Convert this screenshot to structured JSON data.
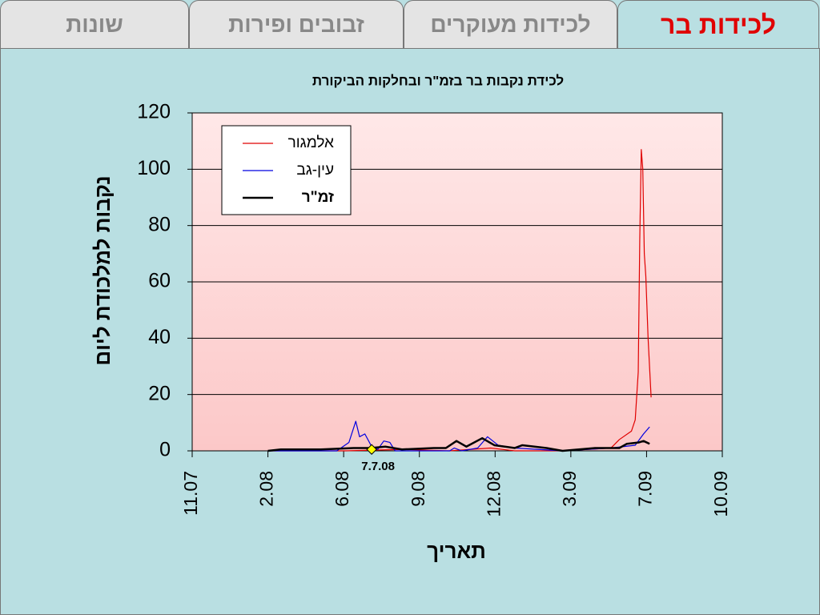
{
  "tabs": [
    "לכידות בר",
    "לכידות מעוקרים",
    "זבובים ופירות",
    "שונות"
  ],
  "chart_data": {
    "type": "line",
    "title": "לכידת נקבות בר בזמ\"ר ובחלקות הביקורת",
    "x_label": "תאריך",
    "y_label": "נקבות למלכודת ליום",
    "xlim": [
      0,
      7
    ],
    "xticks": [
      {
        "value": 0,
        "label": "11.07"
      },
      {
        "value": 1,
        "label": "2.08"
      },
      {
        "value": 2,
        "label": "6.08"
      },
      {
        "value": 3,
        "label": "9.08"
      },
      {
        "value": 4,
        "label": "12.08"
      },
      {
        "value": 5,
        "label": "3.09"
      },
      {
        "value": 6,
        "label": "7.09"
      },
      {
        "value": 7,
        "label": "10.09"
      }
    ],
    "ylim": [
      0,
      120
    ],
    "yticks": [
      0,
      20,
      40,
      60,
      80,
      100,
      120
    ],
    "grid": true,
    "legend": "top-left",
    "series": [
      {
        "name": "אלמגור",
        "color": "#e00000",
        "width": 1.2,
        "x": [
          1.0,
          2.02,
          2.77,
          3.4,
          3.94,
          4.26,
          4.89,
          5.53,
          5.64,
          5.8,
          5.85,
          5.89,
          5.91,
          5.93,
          5.95,
          5.97,
          5.99,
          6.02,
          6.06
        ],
        "values": [
          0,
          0,
          0.5,
          0,
          1,
          0,
          0,
          1,
          4,
          7,
          11,
          28,
          75,
          107,
          100,
          70,
          62,
          40,
          19
        ]
      },
      {
        "name": "עין-גב",
        "color": "#0000e0",
        "width": 1.2,
        "x": [
          1.0,
          1.91,
          2.07,
          2.16,
          2.21,
          2.28,
          2.36,
          2.45,
          2.53,
          2.61,
          2.68,
          3.4,
          3.46,
          3.56,
          3.77,
          3.9,
          4.04,
          4.26,
          4.89,
          5.53,
          5.85,
          5.96,
          6.04
        ],
        "values": [
          0,
          0,
          3,
          10.5,
          5,
          6,
          2,
          0.5,
          3.5,
          3,
          0,
          0,
          1,
          0,
          1,
          5,
          2,
          1,
          0,
          1,
          2,
          6,
          8.5
        ]
      },
      {
        "name": "זמ\"ר",
        "color": "#000000",
        "width": 2.5,
        "x": [
          1.0,
          1.17,
          1.7,
          2.13,
          2.36,
          2.55,
          2.77,
          3.19,
          3.35,
          3.49,
          3.62,
          3.83,
          3.99,
          4.26,
          4.36,
          4.68,
          4.89,
          5.32,
          5.64,
          5.74,
          5.9,
          5.96,
          6.04
        ],
        "values": [
          0,
          0.5,
          0.5,
          1,
          1,
          1.5,
          0.5,
          1,
          1,
          3.5,
          1.5,
          4.5,
          2,
          1,
          2,
          1,
          0,
          1,
          1,
          2.5,
          3,
          3.5,
          2.5
        ]
      }
    ],
    "annotations": [
      {
        "text": "7.7.08",
        "x": 2.37,
        "y": 0.5
      }
    ]
  }
}
